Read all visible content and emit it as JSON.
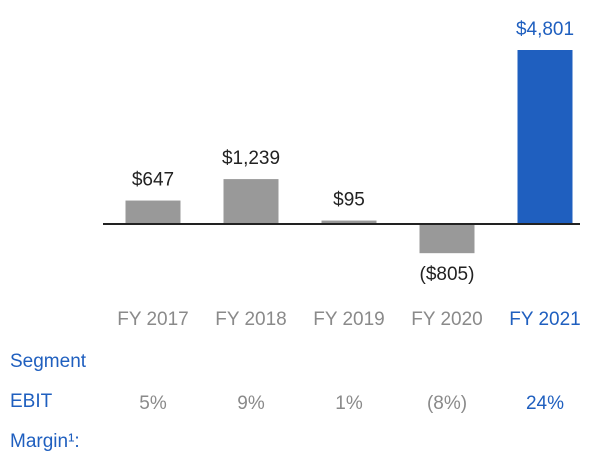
{
  "chart_data": {
    "type": "bar",
    "categories": [
      "FY 2017",
      "FY 2018",
      "FY 2019",
      "FY 2020",
      "FY 2021"
    ],
    "values": [
      647,
      1239,
      95,
      -805,
      4801
    ],
    "value_labels": [
      "$647",
      "$1,239",
      "$95",
      "($805)",
      "$4,801"
    ],
    "colors": [
      "#999999",
      "#999999",
      "#999999",
      "#999999",
      "#1f5fbf"
    ],
    "label_colors": [
      "#222222",
      "#222222",
      "#222222",
      "#222222",
      "#1f5fbf"
    ],
    "category_colors": [
      "#8a8a8a",
      "#8a8a8a",
      "#8a8a8a",
      "#8a8a8a",
      "#1f5fbf"
    ],
    "margin_row": {
      "label": [
        "Segment",
        "EBIT",
        "Margin¹:"
      ],
      "values": [
        "5%",
        "9%",
        "1%",
        "(8%)",
        "24%"
      ]
    }
  }
}
